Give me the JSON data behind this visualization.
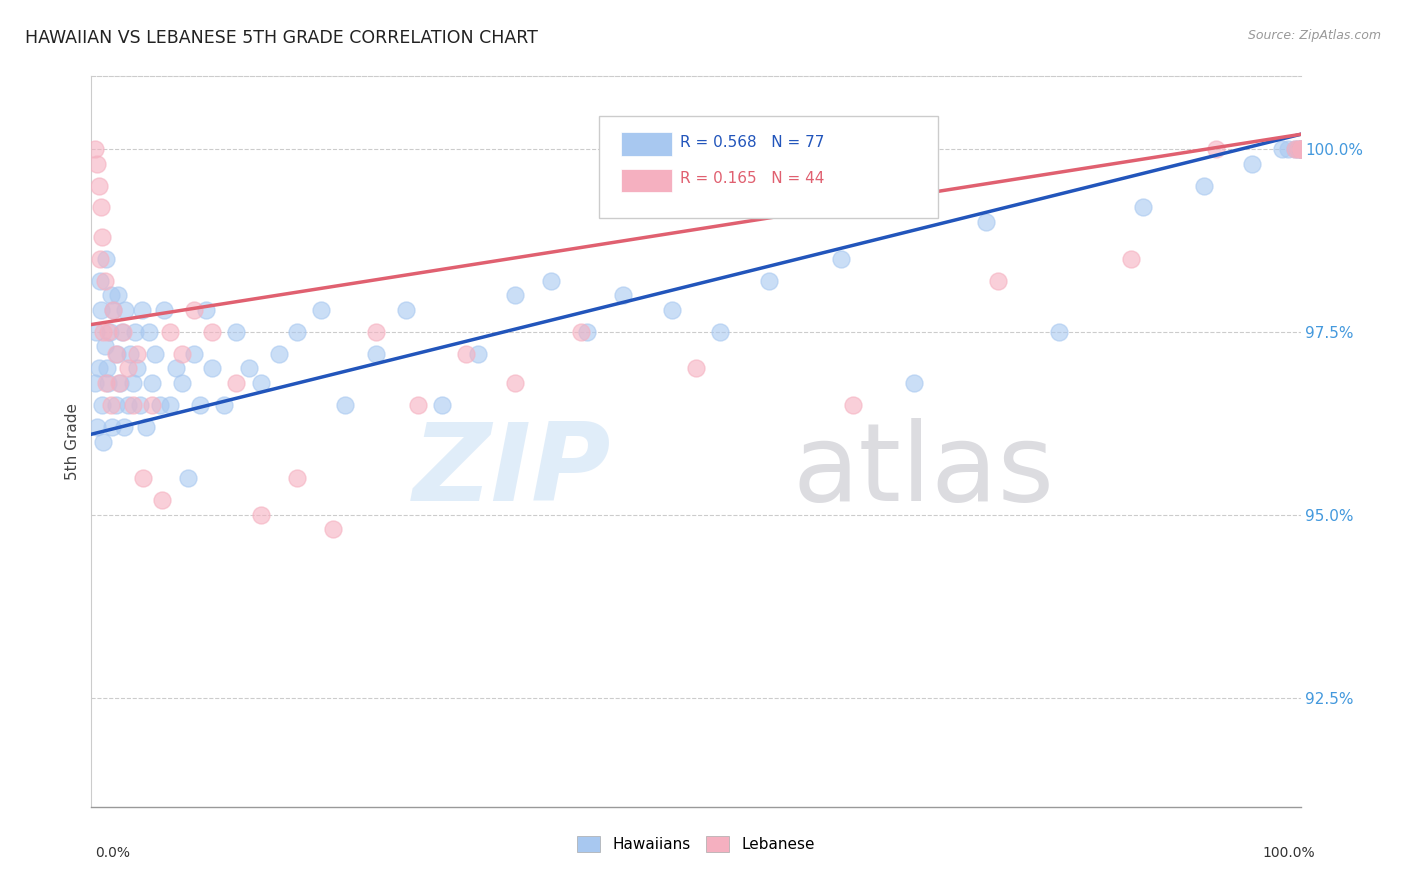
{
  "title": "HAWAIIAN VS LEBANESE 5TH GRADE CORRELATION CHART",
  "source": "Source: ZipAtlas.com",
  "ylabel": "5th Grade",
  "xlim": [
    0.0,
    100.0
  ],
  "ylim": [
    91.0,
    101.0
  ],
  "hawaiians_R": 0.568,
  "hawaiians_N": 77,
  "lebanese_R": 0.165,
  "lebanese_N": 44,
  "hawaiian_color": "#a8c8f0",
  "lebanese_color": "#f5b0c0",
  "trendline_blue": "#2255bb",
  "trendline_pink": "#e06070",
  "ytick_positions": [
    92.5,
    95.0,
    97.5,
    100.0
  ],
  "ytick_labels": [
    "92.5%",
    "95.0%",
    "97.5%",
    "100.0%"
  ],
  "blue_line_x0": 0.0,
  "blue_line_y0": 96.1,
  "blue_line_x1": 100.0,
  "blue_line_y1": 100.2,
  "pink_line_x0": 0.0,
  "pink_line_y0": 97.6,
  "pink_line_x1": 100.0,
  "pink_line_y1": 100.2,
  "hawaiian_scatter_x": [
    0.3,
    0.4,
    0.5,
    0.6,
    0.7,
    0.8,
    0.9,
    1.0,
    1.1,
    1.2,
    1.3,
    1.4,
    1.5,
    1.6,
    1.7,
    1.8,
    2.0,
    2.1,
    2.2,
    2.4,
    2.5,
    2.7,
    2.8,
    3.0,
    3.2,
    3.4,
    3.6,
    3.8,
    4.0,
    4.2,
    4.5,
    4.8,
    5.0,
    5.3,
    5.7,
    6.0,
    6.5,
    7.0,
    7.5,
    8.0,
    8.5,
    9.0,
    9.5,
    10.0,
    11.0,
    12.0,
    13.0,
    14.0,
    15.5,
    17.0,
    19.0,
    21.0,
    23.5,
    26.0,
    29.0,
    32.0,
    35.0,
    38.0,
    41.0,
    44.0,
    48.0,
    52.0,
    56.0,
    62.0,
    68.0,
    74.0,
    80.0,
    87.0,
    92.0,
    96.0,
    98.5,
    99.0,
    99.5,
    99.8,
    100.0,
    100.0,
    100.0
  ],
  "hawaiian_scatter_y": [
    96.8,
    97.5,
    96.2,
    97.0,
    98.2,
    97.8,
    96.5,
    96.0,
    97.3,
    98.5,
    97.0,
    96.8,
    97.5,
    98.0,
    96.2,
    97.8,
    96.5,
    97.2,
    98.0,
    96.8,
    97.5,
    96.2,
    97.8,
    96.5,
    97.2,
    96.8,
    97.5,
    97.0,
    96.5,
    97.8,
    96.2,
    97.5,
    96.8,
    97.2,
    96.5,
    97.8,
    96.5,
    97.0,
    96.8,
    95.5,
    97.2,
    96.5,
    97.8,
    97.0,
    96.5,
    97.5,
    97.0,
    96.8,
    97.2,
    97.5,
    97.8,
    96.5,
    97.2,
    97.8,
    96.5,
    97.2,
    98.0,
    98.2,
    97.5,
    98.0,
    97.8,
    97.5,
    98.2,
    98.5,
    96.8,
    99.0,
    97.5,
    99.2,
    99.5,
    99.8,
    100.0,
    100.0,
    100.0,
    100.0,
    100.0,
    100.0,
    100.0
  ],
  "lebanese_scatter_x": [
    0.3,
    0.5,
    0.6,
    0.7,
    0.8,
    0.9,
    1.0,
    1.1,
    1.2,
    1.4,
    1.6,
    1.8,
    2.0,
    2.3,
    2.6,
    3.0,
    3.4,
    3.8,
    4.3,
    5.0,
    5.8,
    6.5,
    7.5,
    8.5,
    10.0,
    12.0,
    14.0,
    17.0,
    20.0,
    23.5,
    27.0,
    31.0,
    35.0,
    40.5,
    50.0,
    63.0,
    75.0,
    86.0,
    93.0,
    99.5,
    99.8,
    100.0,
    100.0,
    100.0
  ],
  "lebanese_scatter_y": [
    100.0,
    99.8,
    99.5,
    98.5,
    99.2,
    98.8,
    97.5,
    98.2,
    96.8,
    97.5,
    96.5,
    97.8,
    97.2,
    96.8,
    97.5,
    97.0,
    96.5,
    97.2,
    95.5,
    96.5,
    95.2,
    97.5,
    97.2,
    97.8,
    97.5,
    96.8,
    95.0,
    95.5,
    94.8,
    97.5,
    96.5,
    97.2,
    96.8,
    97.5,
    97.0,
    96.5,
    98.2,
    98.5,
    100.0,
    100.0,
    100.0,
    100.0,
    100.0,
    100.0
  ]
}
